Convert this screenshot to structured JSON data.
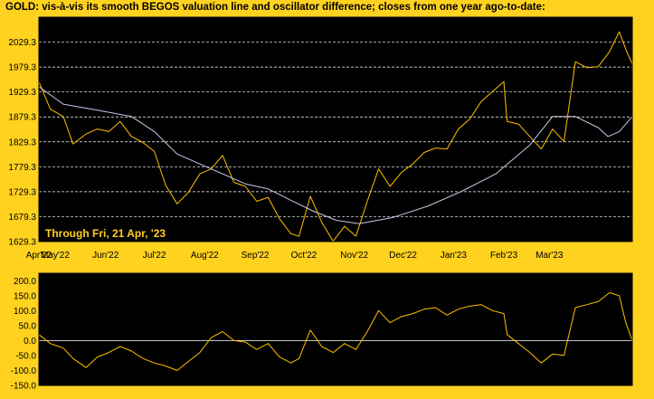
{
  "title": "GOLD:  vis-à-vis its smooth BEGOS valuation line and oscillator difference; closes from one year ago-to-date:",
  "annotation": "Through Fri, 21 Apr, '23",
  "colors": {
    "background": "#ffd21f",
    "plot_bg": "#000000",
    "price": "#ffc000",
    "valuation": "#c8c8e8",
    "grid": "#ffffff"
  },
  "chart_data": [
    {
      "type": "line",
      "ylim": [
        1629.3,
        2079.3
      ],
      "yticks": [
        "2029.3",
        "1979.3",
        "1929.3",
        "1879.3",
        "1829.3",
        "1779.3",
        "1729.3",
        "1679.3",
        "1629.3"
      ],
      "xticks": [
        "Apr'22",
        "May'22",
        "Jun'22",
        "Jul'22",
        "Aug'22",
        "Sep'22",
        "Oct'22",
        "Nov'22",
        "Dec'22",
        "Jan'23",
        "Feb'23",
        "Mar'23"
      ],
      "x_start": "2022-04-21",
      "x_end": "2023-04-21",
      "grid": true,
      "series": [
        {
          "name": "",
          "role": "price",
          "color": "#ffc000",
          "points": [
            [
              "2022-04-21",
              1950
            ],
            [
              "2022-04-28",
              1895
            ],
            [
              "2022-05-06",
              1880
            ],
            [
              "2022-05-12",
              1825
            ],
            [
              "2022-05-20",
              1845
            ],
            [
              "2022-05-27",
              1855
            ],
            [
              "2022-06-03",
              1850
            ],
            [
              "2022-06-10",
              1870
            ],
            [
              "2022-06-17",
              1840
            ],
            [
              "2022-06-24",
              1828
            ],
            [
              "2022-07-01",
              1810
            ],
            [
              "2022-07-08",
              1742
            ],
            [
              "2022-07-15",
              1705
            ],
            [
              "2022-07-22",
              1728
            ],
            [
              "2022-07-29",
              1765
            ],
            [
              "2022-08-05",
              1775
            ],
            [
              "2022-08-12",
              1802
            ],
            [
              "2022-08-19",
              1748
            ],
            [
              "2022-08-26",
              1740
            ],
            [
              "2022-09-02",
              1710
            ],
            [
              "2022-09-09",
              1718
            ],
            [
              "2022-09-16",
              1675
            ],
            [
              "2022-09-23",
              1645
            ],
            [
              "2022-09-28",
              1640
            ],
            [
              "2022-10-05",
              1720
            ],
            [
              "2022-10-12",
              1668
            ],
            [
              "2022-10-19",
              1630
            ],
            [
              "2022-10-26",
              1660
            ],
            [
              "2022-11-02",
              1640
            ],
            [
              "2022-11-09",
              1710
            ],
            [
              "2022-11-16",
              1775
            ],
            [
              "2022-11-23",
              1740
            ],
            [
              "2022-11-30",
              1768
            ],
            [
              "2022-12-07",
              1785
            ],
            [
              "2022-12-14",
              1808
            ],
            [
              "2022-12-21",
              1817
            ],
            [
              "2022-12-28",
              1815
            ],
            [
              "2023-01-04",
              1855
            ],
            [
              "2023-01-11",
              1875
            ],
            [
              "2023-01-18",
              1910
            ],
            [
              "2023-01-25",
              1930
            ],
            [
              "2023-02-01",
              1950
            ],
            [
              "2023-02-03",
              1870
            ],
            [
              "2023-02-10",
              1865
            ],
            [
              "2023-02-17",
              1840
            ],
            [
              "2023-02-24",
              1815
            ],
            [
              "2023-03-03",
              1855
            ],
            [
              "2023-03-10",
              1830
            ],
            [
              "2023-03-17",
              1990
            ],
            [
              "2023-03-24",
              1978
            ],
            [
              "2023-03-31",
              1980
            ],
            [
              "2023-04-07",
              2010
            ],
            [
              "2023-04-13",
              2050
            ],
            [
              "2023-04-17",
              2015
            ],
            [
              "2023-04-21",
              1985
            ]
          ]
        },
        {
          "name": "",
          "role": "valuation",
          "color": "#c8c8e8",
          "points": [
            [
              "2022-04-21",
              1940
            ],
            [
              "2022-05-06",
              1905
            ],
            [
              "2022-05-27",
              1893
            ],
            [
              "2022-06-17",
              1880
            ],
            [
              "2022-07-01",
              1850
            ],
            [
              "2022-07-15",
              1805
            ],
            [
              "2022-08-05",
              1775
            ],
            [
              "2022-08-26",
              1745
            ],
            [
              "2022-09-09",
              1735
            ],
            [
              "2022-09-23",
              1712
            ],
            [
              "2022-10-07",
              1690
            ],
            [
              "2022-10-21",
              1672
            ],
            [
              "2022-11-04",
              1665
            ],
            [
              "2022-11-25",
              1678
            ],
            [
              "2022-12-16",
              1700
            ],
            [
              "2023-01-06",
              1730
            ],
            [
              "2023-01-27",
              1765
            ],
            [
              "2023-02-17",
              1823
            ],
            [
              "2023-03-03",
              1880
            ],
            [
              "2023-03-17",
              1880
            ],
            [
              "2023-03-31",
              1858
            ],
            [
              "2023-04-06",
              1840
            ],
            [
              "2023-04-13",
              1850
            ],
            [
              "2023-04-21",
              1880
            ]
          ]
        }
      ]
    },
    {
      "type": "line",
      "ylim": [
        -150,
        225
      ],
      "yticks": [
        "200.0",
        "150.0",
        "100.0",
        "50.0",
        "0.0",
        "-50.0",
        "-100.0",
        "-150.0"
      ],
      "x_start": "2022-04-21",
      "x_end": "2023-04-21",
      "grid": false,
      "series": [
        {
          "name": "",
          "role": "oscillator",
          "color": "#ffc000",
          "points": [
            [
              "2022-04-21",
              20
            ],
            [
              "2022-04-28",
              -10
            ],
            [
              "2022-05-06",
              -25
            ],
            [
              "2022-05-12",
              -60
            ],
            [
              "2022-05-20",
              -90
            ],
            [
              "2022-05-27",
              -55
            ],
            [
              "2022-06-03",
              -40
            ],
            [
              "2022-06-10",
              -20
            ],
            [
              "2022-06-17",
              -35
            ],
            [
              "2022-06-24",
              -60
            ],
            [
              "2022-07-01",
              -75
            ],
            [
              "2022-07-08",
              -85
            ],
            [
              "2022-07-15",
              -100
            ],
            [
              "2022-07-22",
              -70
            ],
            [
              "2022-07-29",
              -40
            ],
            [
              "2022-08-05",
              10
            ],
            [
              "2022-08-12",
              30
            ],
            [
              "2022-08-19",
              0
            ],
            [
              "2022-08-26",
              -5
            ],
            [
              "2022-09-02",
              -30
            ],
            [
              "2022-09-09",
              -10
            ],
            [
              "2022-09-16",
              -55
            ],
            [
              "2022-09-23",
              -75
            ],
            [
              "2022-09-28",
              -60
            ],
            [
              "2022-10-05",
              35
            ],
            [
              "2022-10-12",
              -20
            ],
            [
              "2022-10-19",
              -40
            ],
            [
              "2022-10-26",
              -10
            ],
            [
              "2022-11-02",
              -30
            ],
            [
              "2022-11-09",
              30
            ],
            [
              "2022-11-16",
              100
            ],
            [
              "2022-11-23",
              60
            ],
            [
              "2022-11-30",
              80
            ],
            [
              "2022-12-07",
              90
            ],
            [
              "2022-12-14",
              105
            ],
            [
              "2022-12-21",
              110
            ],
            [
              "2022-12-28",
              85
            ],
            [
              "2023-01-04",
              105
            ],
            [
              "2023-01-11",
              115
            ],
            [
              "2023-01-18",
              120
            ],
            [
              "2023-01-25",
              100
            ],
            [
              "2023-02-01",
              90
            ],
            [
              "2023-02-03",
              20
            ],
            [
              "2023-02-10",
              -10
            ],
            [
              "2023-02-17",
              -40
            ],
            [
              "2023-02-24",
              -75
            ],
            [
              "2023-03-03",
              -45
            ],
            [
              "2023-03-10",
              -50
            ],
            [
              "2023-03-17",
              110
            ],
            [
              "2023-03-24",
              120
            ],
            [
              "2023-03-31",
              130
            ],
            [
              "2023-04-07",
              160
            ],
            [
              "2023-04-13",
              150
            ],
            [
              "2023-04-17",
              60
            ],
            [
              "2023-04-21",
              0
            ]
          ]
        }
      ]
    }
  ]
}
